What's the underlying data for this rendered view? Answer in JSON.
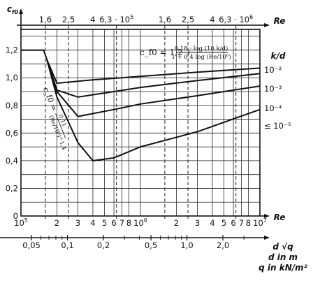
{
  "chart_data": {
    "type": "line",
    "title": "",
    "ylabel": "c_f0",
    "xlabel": "Re",
    "x_scale": "log",
    "xlim": [
      100000,
      10000000
    ],
    "ylim": [
      0,
      1.35
    ],
    "y_ticks": [
      "0",
      "0,2",
      "0,4",
      "0,6",
      "0,8",
      "1,0",
      "1,2"
    ],
    "y_tick_values": [
      0,
      0.2,
      0.4,
      0.6,
      0.8,
      1.0,
      1.2
    ],
    "x_ticks_bottom": [
      {
        "v": 100000,
        "label": "10",
        "sup": "5"
      },
      {
        "v": 200000,
        "label": "2"
      },
      {
        "v": 300000,
        "label": "3"
      },
      {
        "v": 400000,
        "label": "4"
      },
      {
        "v": 500000,
        "label": "5"
      },
      {
        "v": 600000,
        "label": "6"
      },
      {
        "v": 700000,
        "label": "7"
      },
      {
        "v": 800000,
        "label": "8"
      },
      {
        "v": 1000000,
        "label": "10",
        "sup": "6"
      },
      {
        "v": 2000000,
        "label": "2"
      },
      {
        "v": 3000000,
        "label": "3"
      },
      {
        "v": 4000000,
        "label": "4"
      },
      {
        "v": 5000000,
        "label": "5"
      },
      {
        "v": 6000000,
        "label": "6"
      },
      {
        "v": 7000000,
        "label": "7"
      },
      {
        "v": 8000000,
        "label": "8"
      },
      {
        "v": 10000000,
        "label": "10",
        "sup": "7"
      }
    ],
    "x_ticks_top": [
      {
        "v": 160000,
        "label": "1,6"
      },
      {
        "v": 250000,
        "label": "2,5"
      },
      {
        "v": 400000,
        "label": "4"
      },
      {
        "v": 630000,
        "label": "6,3 · 10",
        "sup": "5"
      },
      {
        "v": 1600000,
        "label": "1,6"
      },
      {
        "v": 2500000,
        "label": "2,5"
      },
      {
        "v": 4000000,
        "label": "4"
      },
      {
        "v": 6300000,
        "label": "6,3 · 10",
        "sup": "6"
      }
    ],
    "dashed_verticals": [
      160000,
      250000,
      630000,
      1600000,
      2500000,
      6300000
    ],
    "top_axis_label": "Re",
    "bottom_axis_label": "Re",
    "secondary_axis": {
      "ticks": [
        {
          "v": 0.05,
          "label": "0,05"
        },
        {
          "v": 0.1,
          "label": "0,1"
        },
        {
          "v": 0.2,
          "label": "0,2"
        },
        {
          "v": 0.5,
          "label": "0,5"
        },
        {
          "v": 1.0,
          "label": "1,0"
        },
        {
          "v": 2.0,
          "label": "2,0"
        }
      ],
      "label_lines": [
        "d √q",
        "d in m",
        "q in kN/m²"
      ]
    },
    "legend_title": "k/d",
    "series": [
      {
        "name": "10⁻²",
        "x": [
          100000,
          155000,
          165000,
          200000,
          400000,
          1000000,
          3000000,
          10000000
        ],
        "y": [
          1.2,
          1.2,
          1.13,
          0.96,
          0.985,
          1.01,
          1.04,
          1.07
        ]
      },
      {
        "name": "10⁻³",
        "x": [
          165000,
          200000,
          300000,
          600000,
          1000000,
          3000000,
          10000000
        ],
        "y": [
          1.13,
          0.91,
          0.86,
          0.9,
          0.93,
          0.98,
          1.03
        ]
      },
      {
        "name": "10⁻⁴",
        "x": [
          165000,
          200000,
          300000,
          600000,
          1000000,
          3000000,
          10000000
        ],
        "y": [
          1.13,
          0.9,
          0.72,
          0.77,
          0.81,
          0.87,
          0.94
        ]
      },
      {
        "name": "≤ 10⁻⁵",
        "x": [
          165000,
          200000,
          300000,
          400000,
          600000,
          1000000,
          3000000,
          10000000
        ],
        "y": [
          1.13,
          0.86,
          0.53,
          0.4,
          0.42,
          0.5,
          0.61,
          0.77
        ]
      }
    ],
    "formula_upper": {
      "lhs": "c_f0 = 1,2 +",
      "numerator": "0,18 · log (10 k/d)",
      "denominator": "1 + 0,4 log (Re/10⁶)"
    },
    "formula_lower": {
      "lhs": "c_f0 =",
      "numerator": "0,11",
      "denominator": "(Re/10⁶)^1,4"
    },
    "grid": true
  }
}
